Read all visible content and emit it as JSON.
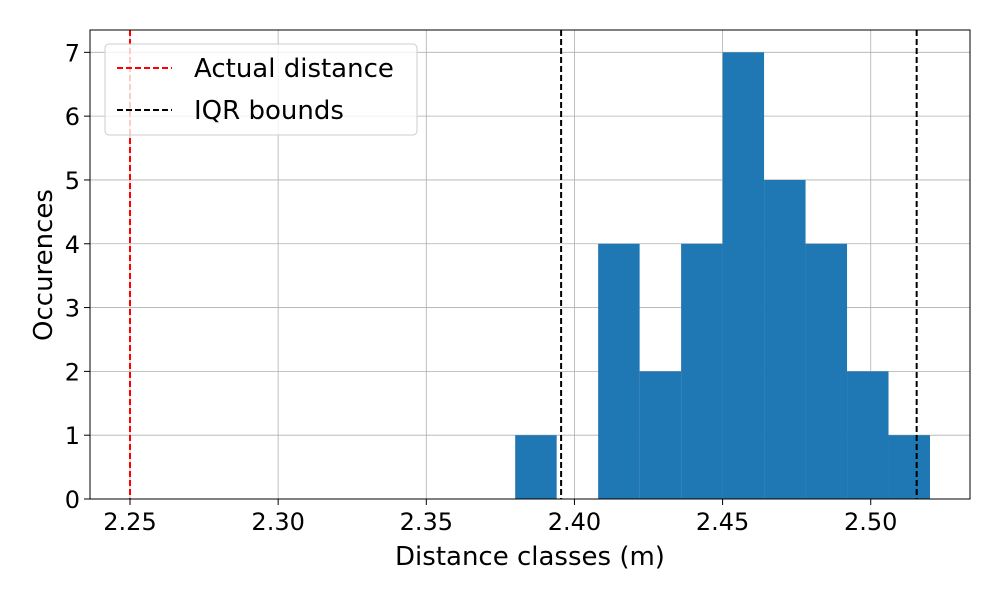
{
  "chart_data": {
    "type": "bar",
    "title": "",
    "xlabel": "Distance classes (m)",
    "ylabel": "Occurences",
    "xlim": [
      2.2365,
      2.5335
    ],
    "ylim": [
      0,
      7.35
    ],
    "xticks": [
      2.25,
      2.3,
      2.35,
      2.4,
      2.45,
      2.5
    ],
    "xtick_labels": [
      "2.25",
      "2.30",
      "2.35",
      "2.40",
      "2.45",
      "2.50"
    ],
    "yticks": [
      0,
      1,
      2,
      3,
      4,
      5,
      6,
      7
    ],
    "ytick_labels": [
      "0",
      "1",
      "2",
      "3",
      "4",
      "5",
      "6",
      "7"
    ],
    "grid": true,
    "bar_color": "#1f77b4",
    "bins": [
      {
        "x0": 2.38,
        "x1": 2.394,
        "count": 1
      },
      {
        "x0": 2.408,
        "x1": 2.422,
        "count": 4
      },
      {
        "x0": 2.422,
        "x1": 2.436,
        "count": 2
      },
      {
        "x0": 2.436,
        "x1": 2.45,
        "count": 4
      },
      {
        "x0": 2.45,
        "x1": 2.464,
        "count": 7
      },
      {
        "x0": 2.464,
        "x1": 2.478,
        "count": 5
      },
      {
        "x0": 2.478,
        "x1": 2.492,
        "count": 4
      },
      {
        "x0": 2.492,
        "x1": 2.506,
        "count": 2
      },
      {
        "x0": 2.506,
        "x1": 2.52,
        "count": 1
      }
    ],
    "vlines": [
      {
        "x": 2.25,
        "color": "#ff0000",
        "legend": "actual"
      },
      {
        "x": 2.3955,
        "color": "#000000",
        "legend": "iqr"
      },
      {
        "x": 2.5155,
        "color": "#000000",
        "legend": "iqr"
      }
    ],
    "legend": {
      "placement": "top-left",
      "entries": [
        {
          "key": "actual",
          "label": "Actual distance",
          "color": "#ff0000"
        },
        {
          "key": "iqr",
          "label": "IQR bounds",
          "color": "#000000"
        }
      ]
    }
  }
}
